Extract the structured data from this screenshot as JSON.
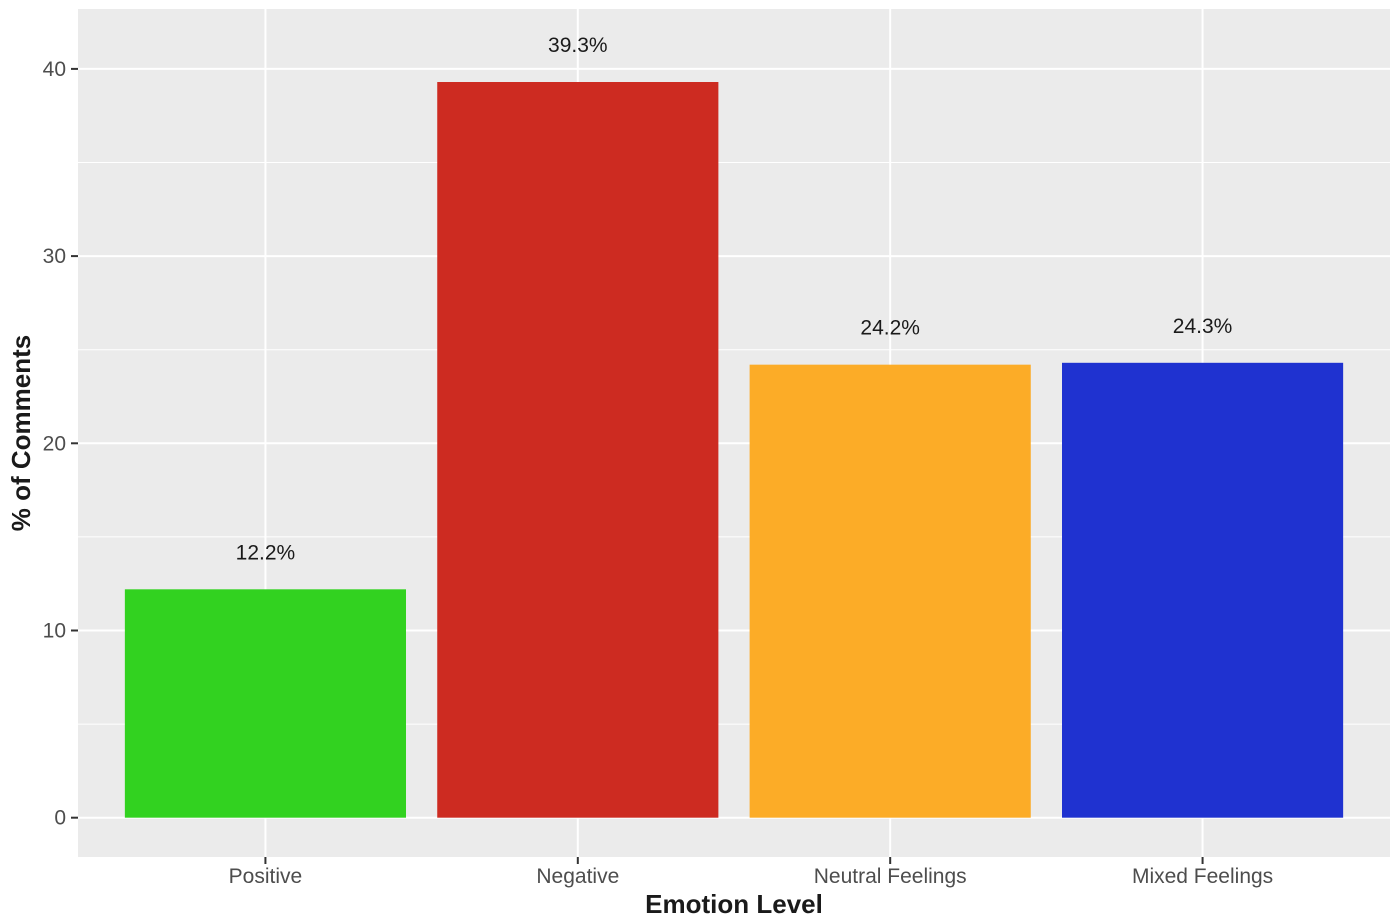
{
  "chart_data": {
    "type": "bar",
    "title": "",
    "xlabel": "Emotion Level",
    "ylabel": "% of Comments",
    "categories": [
      "Positive",
      "Negative",
      "Neutral Feelings",
      "Mixed Feelings"
    ],
    "values": [
      12.2,
      39.3,
      24.2,
      24.3
    ],
    "data_labels": [
      "12.2%",
      "39.3%",
      "24.2%",
      "24.3%"
    ],
    "colors": [
      "#32d220",
      "#cd2b21",
      "#fcac27",
      "#1f32d0"
    ],
    "yticks": [
      0,
      10,
      20,
      30,
      40
    ],
    "ytick_labels": [
      "0",
      "10",
      "20",
      "30",
      "40"
    ],
    "ylim": [
      -2.1,
      43.2
    ],
    "grid": true,
    "legend": "none",
    "background": "#ebebeb"
  }
}
